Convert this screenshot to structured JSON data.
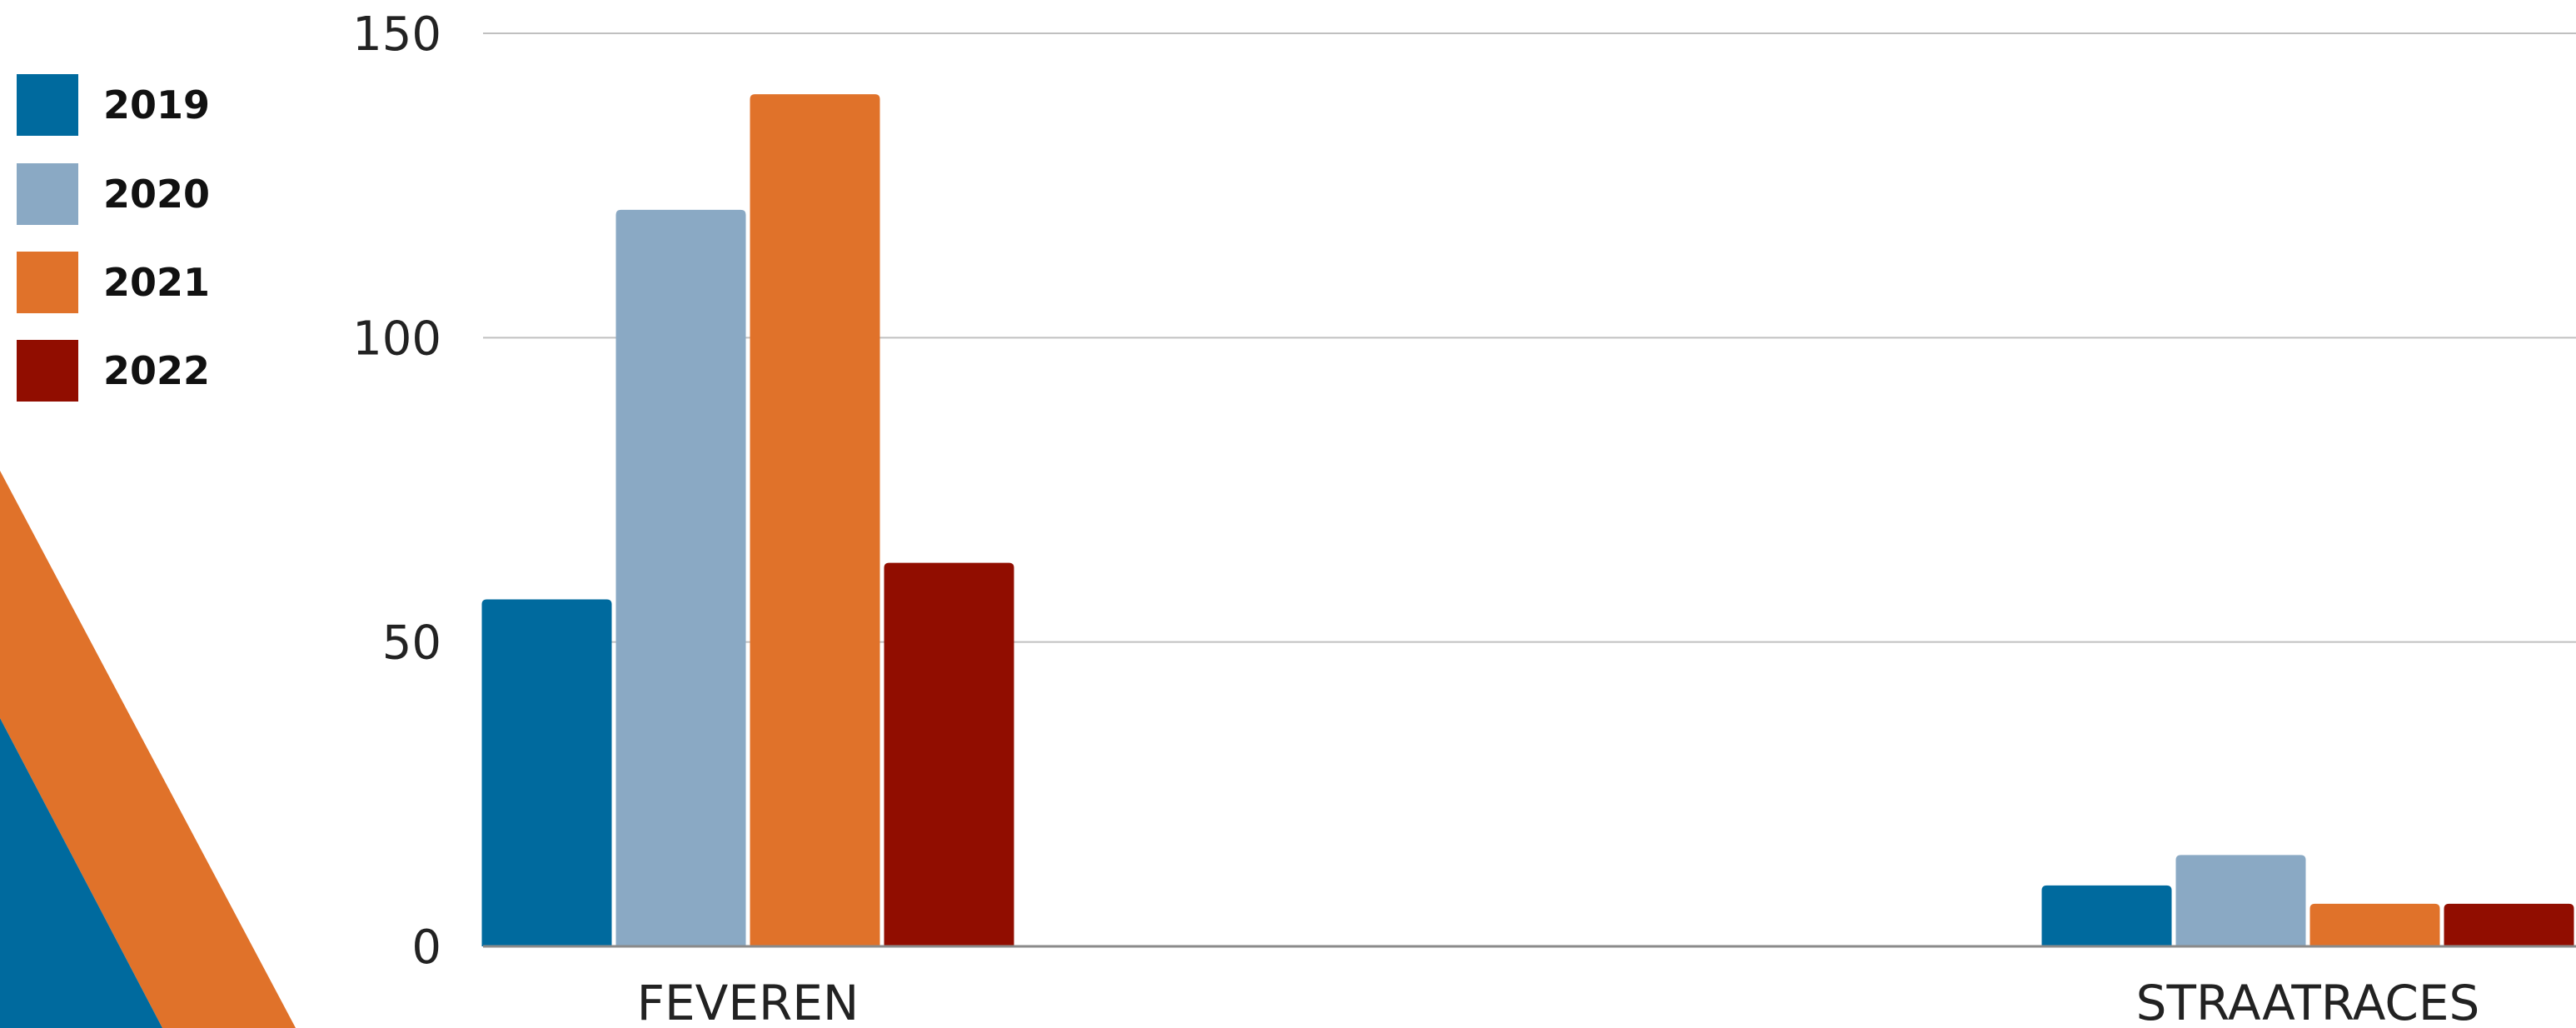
{
  "chart_data": {
    "type": "bar",
    "categories": [
      "FEVEREN",
      "STRAATRACES"
    ],
    "series": [
      {
        "name": "2019",
        "values": [
          57,
          10
        ]
      },
      {
        "name": "2020",
        "values": [
          121,
          15
        ]
      },
      {
        "name": "2021",
        "values": [
          140,
          7
        ]
      },
      {
        "name": "2022",
        "values": [
          63,
          7
        ]
      }
    ],
    "ylim": [
      0,
      150
    ],
    "yticks": [
      0,
      50,
      100,
      150
    ],
    "grid": true,
    "legend_position": "left",
    "title": "",
    "xlabel": "",
    "ylabel": ""
  },
  "colors": {
    "2019": "#006a9e",
    "2020": "#8aa9c4",
    "2021": "#e0722a",
    "2022": "#910d00",
    "grid": "#c0c0c0",
    "axis": "#8a8a8a",
    "decor_orange": "#e0722a",
    "decor_blue": "#006a9e"
  }
}
